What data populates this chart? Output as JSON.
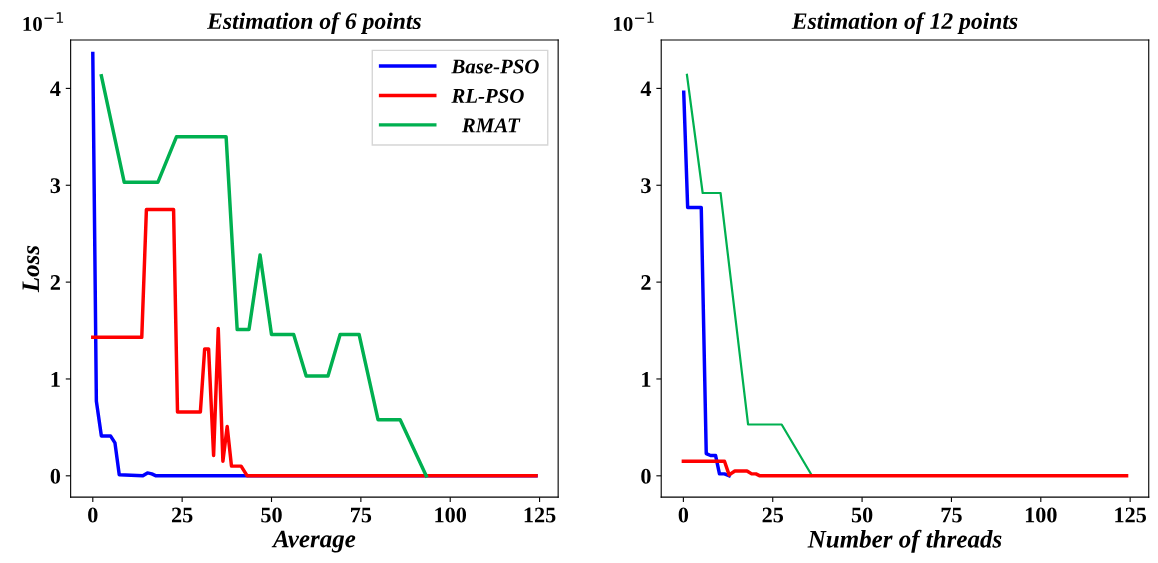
{
  "chart_data": [
    {
      "type": "line",
      "title": "Estimation of 6 points",
      "xlabel": "Average",
      "ylabel": "Loss",
      "annotations": [
        "10$^{−1}$"
      ],
      "xlim": [
        -6.2,
        130.2
      ],
      "ylim": [
        -0.22,
        4.5
      ],
      "xticks": [
        0,
        25,
        50,
        75,
        100,
        125
      ],
      "yticks": [
        0,
        1,
        2,
        3,
        4
      ],
      "grid": false,
      "legend": "top right",
      "marker": "none",
      "line_style": "solid",
      "series": [
        {
          "name": "Base-PSO",
          "color": "#0000ff",
          "x": [
            0,
            1.0,
            2.4,
            5.0,
            6.2,
            7.4,
            14,
            15.3,
            16.5,
            17.7,
            124
          ],
          "values": [
            4.36,
            0.77,
            0.41,
            0.41,
            0.34,
            0.01,
            0,
            0.03,
            0.02,
            0,
            0
          ]
        },
        {
          "name": "RL-PSO",
          "color": "#ff0000",
          "x": [
            0,
            13.7,
            15.0,
            22.6,
            23.7,
            30.1,
            31.3,
            32.4,
            33.8,
            35.1,
            36.4,
            37.6,
            38.8,
            41.5,
            43.2,
            124
          ],
          "values": [
            1.43,
            1.43,
            2.75,
            2.75,
            0.66,
            0.66,
            1.31,
            1.31,
            0.21,
            1.52,
            0.15,
            0.51,
            0.1,
            0.1,
            0,
            0
          ]
        },
        {
          "name": "  RMAT",
          "color": "#00b050",
          "x": [
            2.4,
            8.8,
            18.2,
            23.4,
            37.3,
            40.4,
            43.7,
            46.8,
            50.0,
            56.2,
            59.7,
            65.8,
            69.2,
            74.5,
            79.8,
            86.0,
            93.3
          ],
          "values": [
            4.13,
            3.03,
            3.03,
            3.5,
            3.5,
            1.51,
            1.51,
            2.28,
            1.46,
            1.46,
            1.03,
            1.03,
            1.46,
            1.46,
            0.58,
            0.58,
            0
          ]
        }
      ]
    },
    {
      "type": "line",
      "title": "Estimation of 12 points",
      "xlabel": "Number of threads",
      "annotations": [
        "10$^{−1}$"
      ],
      "xlim": [
        -6.2,
        130.2
      ],
      "ylim": [
        -0.22,
        4.5
      ],
      "xticks": [
        0,
        25,
        50,
        75,
        100,
        125
      ],
      "yticks": [
        0,
        1,
        2,
        3,
        4
      ],
      "grid": false,
      "marker": "none",
      "line_style": "solid",
      "series": [
        {
          "color": "#0000ff",
          "x": [
            0.1,
            1.2,
            5.0,
            6.4,
            7.6,
            9.0,
            10.1,
            11.5,
            12.8
          ],
          "values": [
            3.96,
            2.77,
            2.77,
            0.23,
            0.21,
            0.21,
            0.02,
            0.02,
            0
          ]
        },
        {
          "color": "#00b050",
          "x": [
            1.0,
            5.4,
            10.4,
            18.1,
            27.5,
            36.0
          ],
          "values": [
            4.14,
            2.92,
            2.92,
            0.53,
            0.53,
            0
          ]
        },
        {
          "color": "#ff0000",
          "x": [
            0,
            11.5,
            12.8,
            14.4,
            17.8,
            19.1,
            20.3,
            21.4,
            124
          ],
          "values": [
            0.15,
            0.15,
            0.01,
            0.05,
            0.05,
            0.02,
            0.02,
            0,
            0
          ]
        }
      ]
    }
  ]
}
